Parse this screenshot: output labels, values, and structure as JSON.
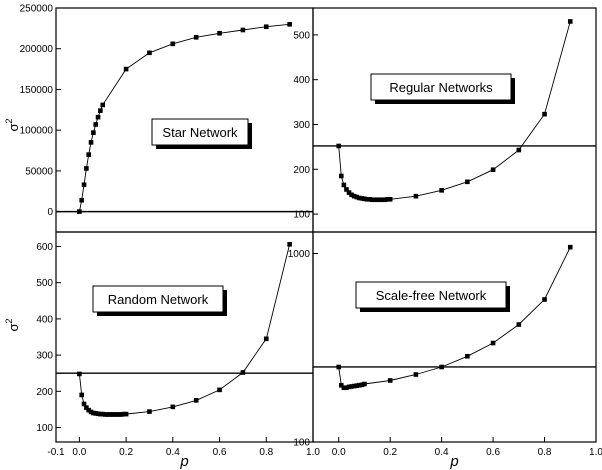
{
  "chart_data": [
    {
      "type": "line",
      "panel": "top-left",
      "label": "Star Network",
      "ylabel": "σ2",
      "xlabel": "",
      "xlim": [
        -0.1,
        1.0
      ],
      "ylim": [
        -25000,
        250000
      ],
      "yscale": "linear",
      "x_ticks": [],
      "x_tick_labels": [],
      "y_ticks": [
        0,
        50000,
        100000,
        150000,
        200000,
        250000
      ],
      "y_tick_labels": [
        "0",
        "50000",
        "100000",
        "150000",
        "200000",
        "250000"
      ],
      "hline": 0,
      "series": [
        {
          "x": [
            0.0,
            0.01,
            0.02,
            0.03,
            0.04,
            0.05,
            0.06,
            0.07,
            0.08,
            0.09,
            0.1,
            0.2,
            0.3,
            0.4,
            0.5,
            0.6,
            0.7,
            0.8,
            0.9
          ],
          "values": [
            0,
            14000,
            33000,
            53000,
            70000,
            85000,
            97000,
            107000,
            116000,
            124000,
            131000,
            175000,
            195000,
            206000,
            214000,
            219000,
            223000,
            227000,
            230000
          ]
        }
      ]
    },
    {
      "type": "line",
      "panel": "top-right",
      "label": "Regular Networks",
      "ylabel": "",
      "xlabel": "",
      "xlim": [
        -0.1,
        1.0
      ],
      "ylim": [
        60,
        560
      ],
      "yscale": "linear",
      "x_ticks": [],
      "x_tick_labels": [],
      "y_ticks": [
        100,
        200,
        300,
        400,
        500
      ],
      "y_tick_labels": [
        "100",
        "200",
        "300",
        "400",
        "500"
      ],
      "hline": 252,
      "series": [
        {
          "x": [
            0.0,
            0.01,
            0.02,
            0.03,
            0.04,
            0.05,
            0.06,
            0.07,
            0.08,
            0.09,
            0.1,
            0.11,
            0.12,
            0.13,
            0.14,
            0.15,
            0.16,
            0.17,
            0.18,
            0.19,
            0.2,
            0.3,
            0.4,
            0.5,
            0.6,
            0.7,
            0.8,
            0.9
          ],
          "values": [
            252,
            185,
            165,
            155,
            148,
            143,
            140,
            138,
            136,
            135,
            134,
            133,
            133,
            132,
            132,
            132,
            132,
            132,
            132,
            133,
            133,
            140,
            153,
            172,
            199,
            243,
            323,
            530
          ]
        }
      ]
    },
    {
      "type": "line",
      "panel": "bottom-left",
      "label": "Random Network",
      "ylabel": "σ2",
      "xlabel": "p",
      "xlim": [
        -0.1,
        1.0
      ],
      "ylim": [
        60,
        640
      ],
      "yscale": "linear",
      "x_ticks": [
        -0.1,
        0.0,
        0.2,
        0.4,
        0.6,
        0.8,
        1.0
      ],
      "x_tick_labels": [
        "-0.1",
        "0.0",
        "0.2",
        "0.4",
        "0.6",
        "0.8",
        "1.0"
      ],
      "y_ticks": [
        100,
        200,
        300,
        400,
        500,
        600
      ],
      "y_tick_labels": [
        "100",
        "200",
        "300",
        "400",
        "500",
        "600"
      ],
      "hline": 250,
      "series": [
        {
          "x": [
            0.0,
            0.01,
            0.02,
            0.03,
            0.04,
            0.05,
            0.06,
            0.07,
            0.08,
            0.09,
            0.1,
            0.11,
            0.12,
            0.13,
            0.14,
            0.15,
            0.16,
            0.17,
            0.18,
            0.19,
            0.2,
            0.3,
            0.4,
            0.5,
            0.6,
            0.7,
            0.8,
            0.9
          ],
          "values": [
            248,
            190,
            165,
            155,
            148,
            143,
            140,
            139,
            138,
            137,
            137,
            136,
            136,
            136,
            136,
            136,
            136,
            136,
            136,
            137,
            137,
            144,
            157,
            175,
            204,
            252,
            345,
            606
          ]
        }
      ]
    },
    {
      "type": "line",
      "panel": "bottom-right",
      "label": "Scale-free Network",
      "ylabel": "",
      "xlabel": "p",
      "xlim": [
        -0.1,
        1.0
      ],
      "ylim": [
        100,
        1300
      ],
      "yscale": "log",
      "x_ticks": [
        0.0,
        0.2,
        0.4,
        0.6,
        0.8,
        1.0
      ],
      "x_tick_labels": [
        "0.0",
        "0.2",
        "0.4",
        "0.6",
        "0.8",
        "1.0"
      ],
      "y_ticks": [
        100,
        1000
      ],
      "y_tick_labels": [
        "100",
        "1000"
      ],
      "hline": 250,
      "series": [
        {
          "x": [
            0.0,
            0.01,
            0.02,
            0.03,
            0.04,
            0.05,
            0.06,
            0.07,
            0.08,
            0.09,
            0.1,
            0.2,
            0.3,
            0.4,
            0.5,
            0.6,
            0.7,
            0.8,
            0.9
          ],
          "values": [
            250,
            200,
            194,
            194,
            196,
            197,
            198,
            199,
            200,
            201,
            203,
            212,
            228,
            250,
            285,
            335,
            420,
            570,
            1080
          ]
        }
      ]
    }
  ]
}
